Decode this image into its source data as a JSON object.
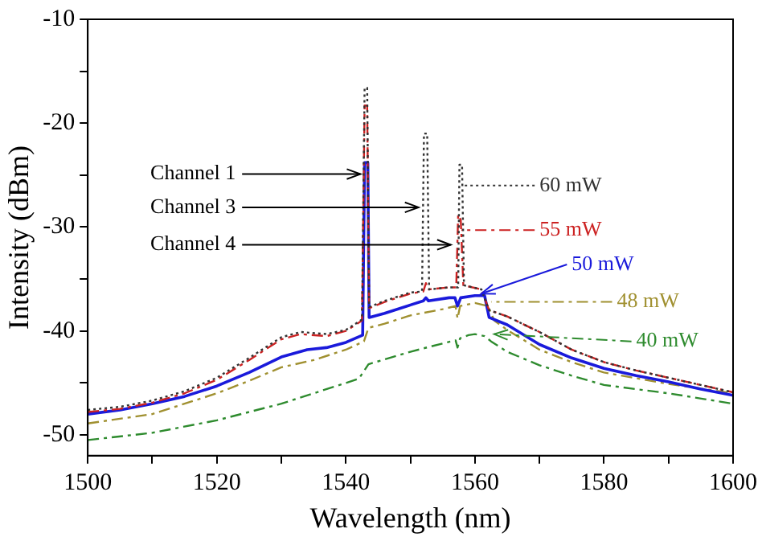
{
  "chart_data": {
    "type": "line",
    "xlabel": "Wavelength (nm)",
    "ylabel": "Intensity (dBm)",
    "xlim": [
      1500,
      1600
    ],
    "xticks": [
      1500,
      {
        "value": 1510,
        "label": null
      },
      1520,
      {
        "value": 1530,
        "label": null
      },
      1540,
      {
        "value": 1550,
        "label": null
      },
      1560,
      {
        "value": 1570,
        "label": null
      },
      1580,
      {
        "value": 1590,
        "label": null
      },
      1600
    ],
    "ylim": [
      -52,
      -10
    ],
    "yticks": [
      -50,
      {
        "value": -45,
        "label": null
      },
      -40,
      {
        "value": -35,
        "label": null
      },
      -30,
      {
        "value": -25,
        "label": null
      },
      -20,
      {
        "value": -15,
        "label": null
      },
      -10
    ],
    "grid": false,
    "legend": "right",
    "marker": "none",
    "series": [
      {
        "name": "60 mW",
        "color": "#333333",
        "line_style": "dotted",
        "x": [
          1500,
          1505,
          1510,
          1515,
          1520,
          1525,
          1530,
          1533,
          1537,
          1540,
          1542.5,
          1542.9,
          1543.3,
          1543.6,
          1546,
          1550,
          1551.8,
          1552.1,
          1552.6,
          1552.9,
          1556,
          1557.4,
          1557.6,
          1558.0,
          1558.3,
          1561,
          1562.2,
          1565,
          1570,
          1575,
          1580,
          1585,
          1590,
          1595,
          1600
        ],
        "values": [
          -47.6,
          -47.3,
          -46.7,
          -45.8,
          -44.5,
          -42.6,
          -40.6,
          -40.1,
          -40.3,
          -39.9,
          -38.9,
          -16.6,
          -16.6,
          -37.7,
          -37.1,
          -36.3,
          -36.2,
          -21.0,
          -21.0,
          -36.0,
          -35.8,
          -35.8,
          -24.0,
          -24.0,
          -35.6,
          -36.0,
          -38.0,
          -38.6,
          -40.1,
          -41.8,
          -43.0,
          -43.8,
          -44.5,
          -45.2,
          -45.9
        ]
      },
      {
        "name": "55 mW",
        "color": "#cc2222",
        "line_style": "dashed",
        "x": [
          1500,
          1505,
          1510,
          1515,
          1520,
          1525,
          1530,
          1533,
          1537,
          1540,
          1542.5,
          1542.9,
          1543.3,
          1543.6,
          1546,
          1550,
          1552,
          1552.4,
          1552.8,
          1556,
          1557.1,
          1557.4,
          1557.8,
          1558.2,
          1561,
          1562.2,
          1565,
          1570,
          1575,
          1580,
          1585,
          1590,
          1595,
          1600
        ],
        "values": [
          -47.8,
          -47.5,
          -46.9,
          -46.0,
          -44.7,
          -42.8,
          -40.8,
          -40.3,
          -40.5,
          -40.0,
          -39.0,
          -18.3,
          -18.3,
          -37.8,
          -37.2,
          -36.4,
          -36.2,
          -35.4,
          -36.0,
          -35.8,
          -35.8,
          -28.8,
          -29.3,
          -35.6,
          -36.0,
          -38.0,
          -38.6,
          -40.1,
          -41.8,
          -43.0,
          -43.8,
          -44.5,
          -45.2,
          -45.9
        ]
      },
      {
        "name": "50 mW",
        "color": "#1a1adb",
        "line_style": "solid",
        "x": [
          1500,
          1505,
          1510,
          1515,
          1520,
          1525,
          1530,
          1534,
          1537,
          1540,
          1542.6,
          1542.9,
          1543.4,
          1543.6,
          1546,
          1550,
          1552,
          1552.4,
          1552.8,
          1556,
          1556.9,
          1557.3,
          1557.8,
          1560,
          1561.5,
          1562.2,
          1565,
          1570,
          1575,
          1580,
          1585,
          1590,
          1595,
          1600
        ],
        "values": [
          -48.0,
          -47.6,
          -47.0,
          -46.3,
          -45.3,
          -44.0,
          -42.5,
          -41.8,
          -41.6,
          -41.1,
          -40.4,
          -23.8,
          -23.8,
          -38.7,
          -38.3,
          -37.5,
          -37.1,
          -36.8,
          -37.1,
          -36.8,
          -36.8,
          -37.6,
          -36.8,
          -36.6,
          -36.6,
          -38.7,
          -39.4,
          -41.3,
          -42.6,
          -43.6,
          -44.3,
          -44.9,
          -45.6,
          -46.2
        ]
      },
      {
        "name": "48 mW",
        "color": "#a09030",
        "line_style": "dashed",
        "x": [
          1500,
          1510,
          1520,
          1525,
          1530,
          1535,
          1540,
          1542.8,
          1543.5,
          1546,
          1550,
          1555,
          1557,
          1557.3,
          1557.7,
          1560,
          1562,
          1563,
          1565,
          1570,
          1575,
          1580,
          1590,
          1600
        ],
        "values": [
          -48.9,
          -48.0,
          -46.0,
          -44.8,
          -43.5,
          -42.8,
          -41.8,
          -41.0,
          -39.7,
          -39.3,
          -38.5,
          -37.9,
          -37.6,
          -38.8,
          -37.6,
          -37.3,
          -37.6,
          -39.0,
          -39.9,
          -41.8,
          -43.0,
          -44.0,
          -45.1,
          -46.0
        ]
      },
      {
        "name": "40 mW",
        "color": "#2e8b2e",
        "line_style": "dashed",
        "x": [
          1500,
          1510,
          1520,
          1530,
          1540,
          1542,
          1543.5,
          1550,
          1555,
          1557,
          1557.3,
          1557.7,
          1559,
          1560,
          1561.5,
          1562.5,
          1565,
          1570,
          1575,
          1580,
          1590,
          1600
        ],
        "values": [
          -50.5,
          -49.8,
          -48.6,
          -47.0,
          -45.0,
          -44.6,
          -43.2,
          -42.0,
          -41.2,
          -40.9,
          -41.6,
          -40.7,
          -40.4,
          -40.3,
          -40.5,
          -41.0,
          -42.0,
          -43.3,
          -44.3,
          -45.2,
          -46.0,
          -47.0
        ]
      }
    ],
    "annotations": [
      {
        "text": "Channel 1",
        "x": 1542.5,
        "y": -24.9
      },
      {
        "text": "Channel 3",
        "x": 1551.5,
        "y": -28.1
      },
      {
        "text": "Channel 4",
        "x": 1556.5,
        "y": -31.7
      }
    ]
  }
}
